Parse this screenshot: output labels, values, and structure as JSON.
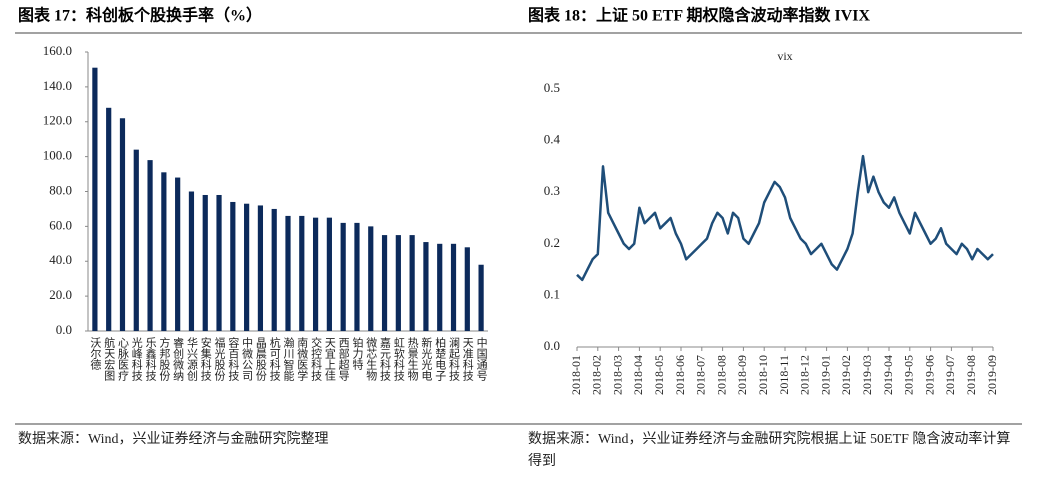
{
  "chart_data": [
    {
      "type": "bar",
      "title": "图表 17：科创板个股换手率（%）",
      "source": "数据来源：Wind，兴业证券经济与金融研究院整理",
      "categories": [
        "沃尔德",
        "航天宏图",
        "心脉医疗",
        "光峰科技",
        "乐鑫科技",
        "方邦股份",
        "睿创微纳",
        "华兴源创",
        "安集科技",
        "福光股份",
        "容百科技",
        "中微公司",
        "晶晨股份",
        "杭可科技",
        "瀚川智能",
        "南微医学",
        "交控科技",
        "天宜上佳",
        "西部超导",
        "铂力特",
        "微芯生物",
        "嘉元科技",
        "虹软科技",
        "热景生物",
        "新光光电",
        "柏楚电子",
        "澜起科技",
        "天准科技",
        "中国通号"
      ],
      "values": [
        151,
        128,
        122,
        104,
        98,
        91,
        88,
        80,
        78,
        78,
        74,
        73,
        72,
        70,
        66,
        66,
        65,
        65,
        62,
        62,
        60,
        55,
        55,
        55,
        51,
        50,
        50,
        48,
        38
      ],
      "color": "#0c2a5b",
      "ylim": [
        0,
        160
      ],
      "yticks": [
        {
          "value": 0,
          "label": "0.0"
        },
        {
          "value": 20,
          "label": "20.0"
        },
        {
          "value": 40,
          "label": "40.0"
        },
        {
          "value": 60,
          "label": "60.0"
        },
        {
          "value": 80,
          "label": "80.0"
        },
        {
          "value": 100,
          "label": "100.0"
        },
        {
          "value": 120,
          "label": "120.0"
        },
        {
          "value": 140,
          "label": "140.0"
        },
        {
          "value": 160,
          "label": "160.0"
        }
      ]
    },
    {
      "type": "line",
      "title": "图表 18：上证 50 ETF 期权隐含波动率指数 IVIX",
      "source": "数据来源：Wind，兴业证券经济与金融研究院根据上证 50ETF 隐含波动率计算得到",
      "categories": [
        "2018-01",
        null,
        null,
        null,
        "2018-02",
        null,
        null,
        null,
        "2018-03",
        null,
        null,
        null,
        "2018-04",
        null,
        null,
        null,
        "2018-05",
        null,
        null,
        null,
        "2018-06",
        null,
        null,
        null,
        "2018-07",
        null,
        null,
        null,
        "2018-08",
        null,
        null,
        null,
        "2018-09",
        null,
        null,
        null,
        "2018-10",
        null,
        null,
        null,
        "2018-11",
        null,
        null,
        null,
        "2018-12",
        null,
        null,
        null,
        "2019-01",
        null,
        null,
        null,
        "2019-02",
        null,
        null,
        null,
        "2019-03",
        null,
        null,
        null,
        "2019-04",
        null,
        null,
        null,
        "2019-05",
        null,
        null,
        null,
        "2019-06",
        null,
        null,
        null,
        "2019-07",
        null,
        null,
        null,
        "2019-08",
        null,
        null,
        null,
        "2019-09"
      ],
      "series": [
        {
          "name": "vix",
          "color": "#1f4e79",
          "values": [
            0.14,
            0.13,
            0.15,
            0.17,
            0.18,
            0.35,
            0.26,
            0.24,
            0.22,
            0.2,
            0.19,
            0.2,
            0.27,
            0.24,
            0.25,
            0.26,
            0.23,
            0.24,
            0.25,
            0.22,
            0.2,
            0.17,
            0.18,
            0.19,
            0.2,
            0.21,
            0.24,
            0.26,
            0.25,
            0.22,
            0.26,
            0.25,
            0.21,
            0.2,
            0.22,
            0.24,
            0.28,
            0.3,
            0.32,
            0.31,
            0.29,
            0.25,
            0.23,
            0.21,
            0.2,
            0.18,
            0.19,
            0.2,
            0.18,
            0.16,
            0.15,
            0.17,
            0.19,
            0.22,
            0.3,
            0.37,
            0.3,
            0.33,
            0.3,
            0.28,
            0.27,
            0.29,
            0.26,
            0.24,
            0.22,
            0.26,
            0.24,
            0.22,
            0.2,
            0.21,
            0.23,
            0.2,
            0.19,
            0.18,
            0.2,
            0.19,
            0.17,
            0.19,
            0.18,
            0.17,
            0.18
          ]
        }
      ],
      "ylim": [
        0,
        0.5
      ],
      "yticks": [
        {
          "value": 0,
          "label": "0.0"
        },
        0.1,
        0.2,
        0.3,
        0.4,
        0.5
      ]
    }
  ]
}
